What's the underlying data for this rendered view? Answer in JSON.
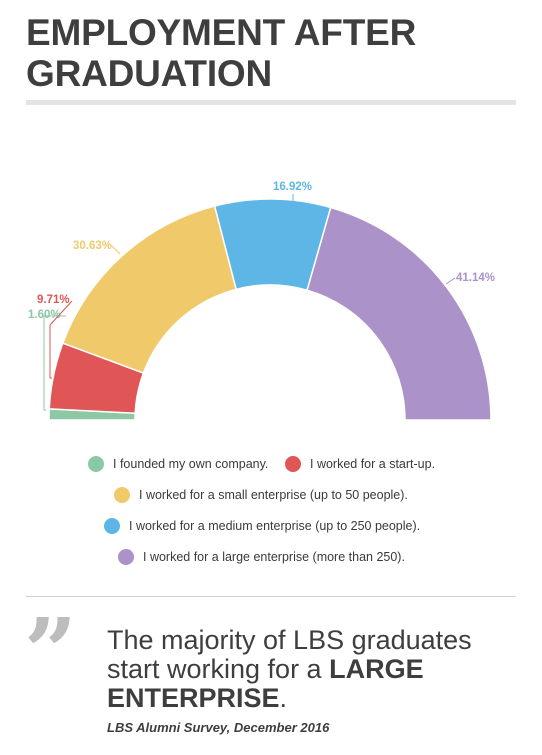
{
  "header": {
    "title_line1": "EMPLOYMENT AFTER",
    "title_line2": "GRADUATION"
  },
  "chart_data": {
    "type": "pie",
    "variant": "semi-donut",
    "slices": [
      {
        "label": "I founded my own company.",
        "value": 1.6,
        "value_label": "1.60%",
        "color": "#8dc8a4"
      },
      {
        "label": "I worked for a start-up.",
        "value": 9.71,
        "value_label": "9.71%",
        "color": "#e05555"
      },
      {
        "label": "I worked for a small enterprise (up to 50 people).",
        "value": 30.63,
        "value_label": "30.63%",
        "color": "#f0c96b"
      },
      {
        "label": "I worked for a medium enterprise (up to 250 people).",
        "value": 16.92,
        "value_label": "16.92%",
        "color": "#5db6e6"
      },
      {
        "label": "I worked for a large enterprise (more than 250).",
        "value": 41.14,
        "value_label": "41.14%",
        "color": "#ab92c8"
      }
    ],
    "legend_position": "bottom"
  },
  "quote": {
    "text_before": "The majority of LBS graduates start working for a ",
    "text_emphasis": "LARGE ENTERPRISE",
    "text_after": ".",
    "source": "LBS Alumni Survey, December 2016"
  }
}
